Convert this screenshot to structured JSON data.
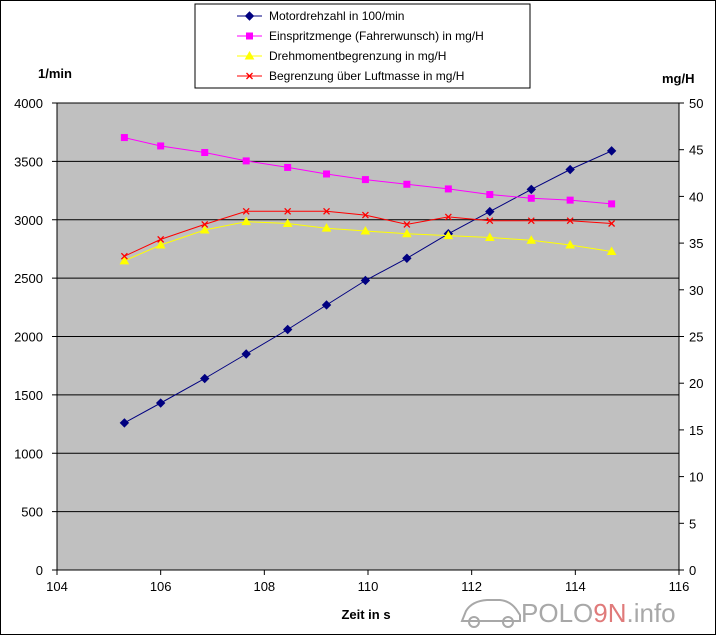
{
  "chart_data": {
    "type": "line",
    "xlabel": "Zeit in s",
    "ylabel_left": "1/min",
    "ylabel_right": "mg/H",
    "xlim": [
      104,
      116
    ],
    "ylim_left": [
      0,
      4000
    ],
    "ylim_right": [
      0,
      50
    ],
    "x_ticks": [
      "104",
      "106",
      "108",
      "110",
      "112",
      "114",
      "116"
    ],
    "y_left_ticks": [
      "0",
      "500",
      "1000",
      "1500",
      "2000",
      "2500",
      "3000",
      "3500",
      "4000"
    ],
    "y_right_ticks": [
      "0",
      "5",
      "10",
      "15",
      "20",
      "25",
      "30",
      "35",
      "40",
      "45",
      "50"
    ],
    "grid": "horizontal",
    "legend": "top-center",
    "x": [
      105.3,
      106.0,
      106.85,
      107.65,
      108.45,
      109.2,
      109.95,
      110.75,
      111.55,
      112.35,
      113.15,
      113.9,
      114.7
    ],
    "series": [
      {
        "name": "Motordrehzahl in 100/min",
        "axis": "left",
        "color": "#000080",
        "marker": "diamond",
        "values": [
          1260,
          1430,
          1640,
          1850,
          2060,
          2270,
          2480,
          2670,
          2880,
          3070,
          3260,
          3430,
          3590
        ]
      },
      {
        "name": "Einspritzmenge (Fahrerwunsch) in mg/H",
        "axis": "right",
        "color": "#ff00ff",
        "marker": "square",
        "values": [
          46.3,
          45.4,
          44.7,
          43.8,
          43.1,
          42.4,
          41.8,
          41.3,
          40.8,
          40.2,
          39.8,
          39.6,
          39.2
        ]
      },
      {
        "name": "Drehmomentbegrenzung in mg/H",
        "axis": "right",
        "color": "#ffff00",
        "marker": "triangle",
        "values": [
          33.1,
          34.8,
          36.4,
          37.3,
          37.1,
          36.6,
          36.3,
          36.0,
          35.8,
          35.6,
          35.3,
          34.8,
          34.1
        ]
      },
      {
        "name": "Begrenzung über Luftmasse in mg/H",
        "axis": "right",
        "color": "#ff0000",
        "marker": "x",
        "values": [
          33.6,
          35.4,
          37.0,
          38.4,
          38.4,
          38.4,
          38.0,
          37.0,
          37.8,
          37.4,
          37.4,
          37.4,
          37.1
        ]
      }
    ]
  },
  "watermark": {
    "prefix": "POLO",
    "accent": "9N",
    "suffix": ".info"
  }
}
